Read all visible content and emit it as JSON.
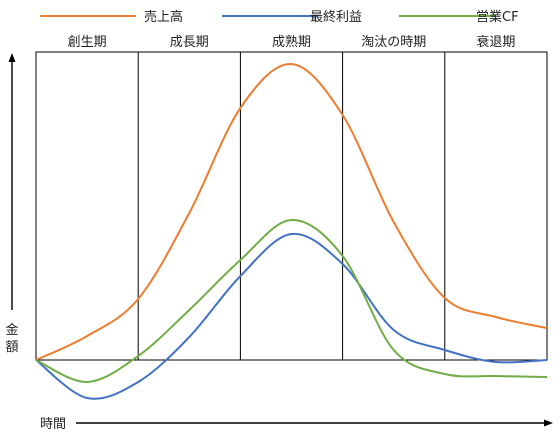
{
  "chart_data": {
    "type": "line",
    "title": "",
    "xlabel": "時間",
    "ylabel": "金額",
    "grid": false,
    "legend_position": "top",
    "x": [
      0,
      0.5,
      1,
      1.5,
      2,
      2.5,
      3,
      3.5,
      4,
      4.5,
      5
    ],
    "phases": [
      "創生期",
      "成長期",
      "成熟期",
      "淘汰の時期",
      "衰退期"
    ],
    "series": [
      {
        "name": "売上高",
        "color": "#ED7D31",
        "values": [
          0,
          24,
          61,
          147,
          252,
          296,
          245,
          138,
          62,
          43,
          32
        ]
      },
      {
        "name": "最終利益",
        "color": "#4472C4",
        "values": [
          0,
          -38,
          -22,
          23,
          84,
          126,
          96,
          30,
          10,
          -2,
          0
        ]
      },
      {
        "name": "営業CF",
        "color": "#70AD47",
        "values": [
          0,
          -22,
          4,
          50,
          100,
          140,
          104,
          10,
          -14,
          -16,
          -17
        ]
      }
    ]
  }
}
